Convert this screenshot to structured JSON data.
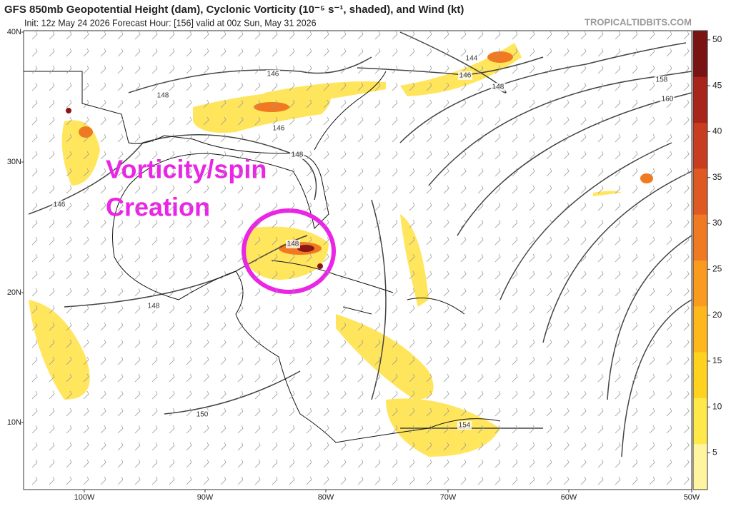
{
  "header": {
    "title": "GFS 850mb Geopotential Height (dam), Cyclonic Vorticity (10⁻⁵ s⁻¹, shaded), and Wind (kt)",
    "subtitle": "Init: 12z May 24 2026   Forecast Hour: [156]   valid at 00z Sun, May 31 2026",
    "watermark": "TROPICALTIDBITS.COM"
  },
  "map": {
    "lat_labels": [
      "40N",
      "30N",
      "20N",
      "10N"
    ],
    "lon_labels": [
      "100W",
      "90W",
      "80W",
      "70W",
      "60W",
      "50W"
    ],
    "contour_labels": [
      144,
      146,
      148,
      158,
      160,
      146,
      148,
      146,
      148,
      146,
      148,
      148,
      150,
      154
    ],
    "annotation": [
      "Vorticity/spin",
      "Creation"
    ]
  },
  "colorbar": {
    "ticks": [
      5,
      10,
      15,
      20,
      25,
      30,
      35,
      40,
      45,
      50
    ],
    "range": [
      1,
      51
    ],
    "colors": [
      "#fff5a0",
      "#ffe94a",
      "#ffd21f",
      "#ffb81c",
      "#fa9a1e",
      "#f07a22",
      "#df5a22",
      "#c83c20",
      "#a8251c",
      "#7a1414"
    ]
  }
}
